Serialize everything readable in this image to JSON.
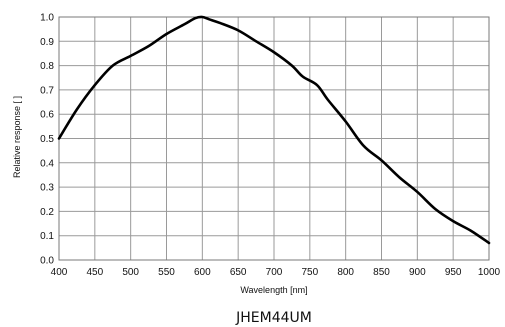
{
  "chart_data": {
    "type": "line",
    "xlabel": "Wavelength [nm]",
    "ylabel": "Relative response [ ]",
    "caption": "JHEM44UM",
    "xlim": [
      400,
      1000
    ],
    "ylim": [
      0.0,
      1.0
    ],
    "x_ticks": [
      "400",
      "450",
      "500",
      "550",
      "600",
      "650",
      "700",
      "750",
      "800",
      "850",
      "900",
      "950",
      "1000"
    ],
    "y_ticks": [
      "0.0",
      "0.1",
      "0.2",
      "0.3",
      "0.4",
      "0.5",
      "0.6",
      "0.7",
      "0.8",
      "0.9",
      "1.0"
    ],
    "grid": true,
    "series": [
      {
        "color": "#000000",
        "x": [
          400,
          425,
          450,
          475,
          500,
          525,
          550,
          575,
          590,
          600,
          610,
          625,
          650,
          675,
          700,
          725,
          740,
          760,
          775,
          800,
          825,
          850,
          875,
          900,
          925,
          950,
          975,
          1000
        ],
        "y": [
          0.5,
          0.62,
          0.72,
          0.8,
          0.84,
          0.88,
          0.93,
          0.97,
          0.995,
          1.0,
          0.99,
          0.975,
          0.945,
          0.9,
          0.855,
          0.8,
          0.755,
          0.72,
          0.66,
          0.57,
          0.47,
          0.41,
          0.34,
          0.28,
          0.21,
          0.16,
          0.12,
          0.07
        ]
      }
    ]
  }
}
